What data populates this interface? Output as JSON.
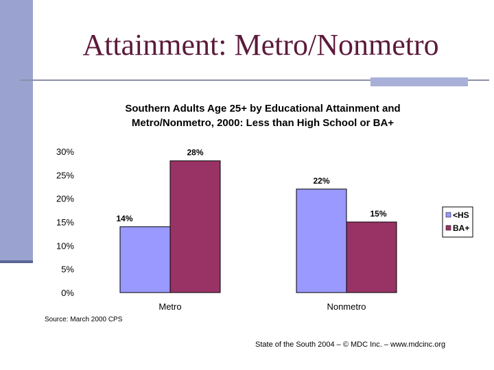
{
  "slide": {
    "title": "Attainment: Metro/Nonmetro",
    "source": "Source:  March 2000 CPS",
    "footer": "State of the South 2004 – © MDC Inc. – www.mdcinc.org"
  },
  "colors": {
    "left_bar": "#9aa3cf",
    "title_text": "#5c1a3a",
    "series_hs": "#9999ff",
    "series_ba": "#993366"
  },
  "chart_data": {
    "type": "bar",
    "title_lines": [
      "Southern Adults Age 25+ by Educational Attainment and",
      "Metro/Nonmetro, 2000:  Less than High School or BA+"
    ],
    "categories": [
      "Metro",
      "Nonmetro"
    ],
    "series": [
      {
        "name": "<HS",
        "values": [
          14,
          22
        ],
        "labels": [
          "14%",
          "22%"
        ]
      },
      {
        "name": "BA+",
        "values": [
          28,
          15
        ],
        "labels": [
          "28%",
          "15%"
        ]
      }
    ],
    "ylim": [
      0,
      30
    ],
    "yticks": [
      "0%",
      "5%",
      "10%",
      "15%",
      "20%",
      "25%",
      "30%"
    ],
    "grid": false,
    "legend": "right"
  }
}
